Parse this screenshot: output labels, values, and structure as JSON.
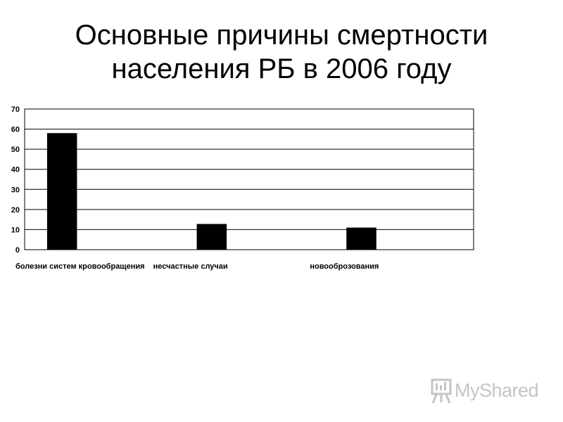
{
  "chart_data": {
    "type": "bar",
    "title_lines": [
      "Основные причины смертности",
      "населения РБ в 2006 году"
    ],
    "categories": [
      "болезни систем кровообращения",
      "несчастные случаи",
      "новооброзования"
    ],
    "values": [
      58,
      12.8,
      11
    ],
    "ylim": [
      0,
      70
    ],
    "yticks": [
      0,
      10,
      20,
      30,
      40,
      50,
      60,
      70
    ],
    "grid": true,
    "legend": "none",
    "bar_color": "#000000"
  },
  "watermark": {
    "text": "MyShared"
  }
}
